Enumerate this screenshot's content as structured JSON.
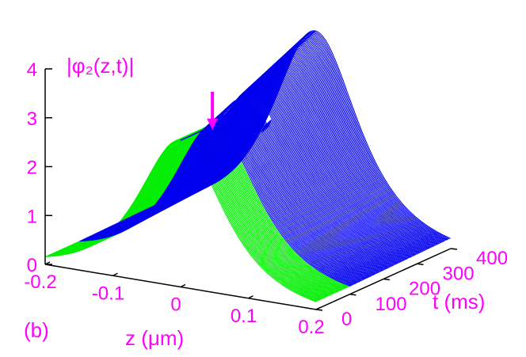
{
  "chart_data": {
    "type": "surface3d",
    "panel_label": "(b)",
    "zlabel": "|φ₂(z,t)|",
    "xlabel": "z (μm)",
    "ylabel": "t (ms)",
    "x_ticks": [
      "-0.2",
      "-0.1",
      "0",
      "0.1",
      "0.2"
    ],
    "y_ticks": [
      "0",
      "100",
      "200",
      "300",
      "400"
    ],
    "z_ticks": [
      "0",
      "1",
      "2",
      "3",
      "4"
    ],
    "xlim": [
      -0.2,
      0.2
    ],
    "ylim": [
      0,
      400
    ],
    "zlim": [
      0,
      4
    ],
    "series": [
      {
        "t_range": [
          0,
          100
        ],
        "color": "#00ee00"
      },
      {
        "t_range": [
          100,
          400
        ],
        "color": "#0000ee"
      }
    ],
    "profile": {
      "center": 0.0,
      "width": 0.055,
      "peak_t0": 3.0,
      "peak_t100": 3.0,
      "peak_t400": 4.0
    },
    "annotation": {
      "type": "arrow",
      "t": 195,
      "z": -0.05
    },
    "colors": {
      "axis": "#000000",
      "text": "#ff00ff",
      "arrow": "#ff00ff",
      "early": "#00ee00",
      "late": "#0000ee"
    }
  }
}
